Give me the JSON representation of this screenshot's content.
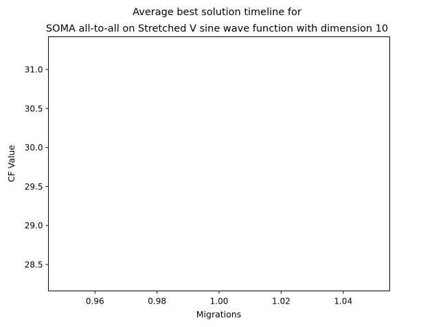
{
  "chart_data": {
    "type": "line",
    "title_line1": "Average best solution timeline for",
    "title_line2": "SOMA all-to-all on Stretched V sine wave function with dimension 10",
    "xlabel": "Migrations",
    "ylabel": "CF Value",
    "xlim": [
      0.945,
      1.055
    ],
    "ylim": [
      28.16,
      31.42
    ],
    "xticks": [
      0.96,
      0.98,
      1.0,
      1.02,
      1.04
    ],
    "xtick_labels": [
      "0.96",
      "0.98",
      "1.00",
      "1.02",
      "1.04"
    ],
    "yticks": [
      28.5,
      29.0,
      29.5,
      30.0,
      30.5,
      31.0
    ],
    "ytick_labels": [
      "28.5",
      "29.0",
      "29.5",
      "30.0",
      "30.5",
      "31.0"
    ],
    "grid": false,
    "series": [
      {
        "x": [],
        "values": []
      }
    ],
    "colors": {
      "frame": "#000000",
      "background": "#ffffff"
    }
  }
}
